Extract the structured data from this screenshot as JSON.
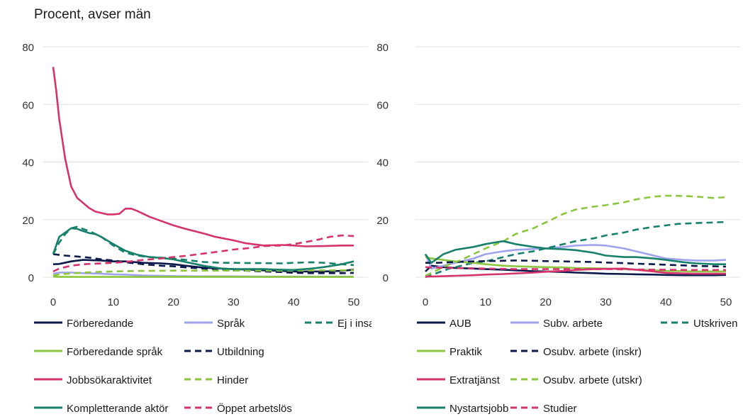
{
  "page_title": "Procent, avser män",
  "colors": {
    "navy": "#0b1a4a",
    "lavender": "#9fa3ee",
    "teal": "#17806a",
    "lime": "#8cc63f",
    "magenta": "#d6336c"
  },
  "chart_data": [
    {
      "type": "line",
      "title": "",
      "xlabel": "",
      "ylabel": "",
      "xlim": [
        0,
        50
      ],
      "ylim": [
        0,
        80
      ],
      "x_ticks": [
        0,
        10,
        20,
        30,
        40,
        50
      ],
      "y_ticks": [
        0,
        20,
        40,
        60,
        80
      ],
      "grid": "horizontal",
      "legend_position": "bottom",
      "series": [
        {
          "name": "Förberedande",
          "color": "#0b1a4a",
          "dash": "solid",
          "x": [
            0,
            1,
            3,
            5,
            8,
            10,
            12,
            15,
            18,
            20,
            22,
            25,
            28,
            30,
            33,
            35,
            38,
            40,
            43,
            45,
            48,
            50
          ],
          "y": [
            4.5,
            4.6,
            5.5,
            6,
            5.8,
            5.5,
            5.5,
            5,
            4.8,
            4.5,
            4,
            3.3,
            3,
            2.8,
            2.6,
            2.4,
            2.2,
            2,
            2,
            2,
            2.2,
            2.6
          ]
        },
        {
          "name": "Språk",
          "color": "#9fa3ee",
          "dash": "solid",
          "x": [
            0,
            1,
            3,
            5,
            8,
            10,
            12,
            15,
            18,
            20,
            25,
            30,
            35,
            40,
            45,
            50
          ],
          "y": [
            1.2,
            1.6,
            1.6,
            1.4,
            1.2,
            1,
            0.9,
            0.6,
            0.5,
            0.4,
            0.3,
            0.3,
            0.2,
            0.2,
            0.2,
            0.2
          ]
        },
        {
          "name": "Ej i insats",
          "color": "#17806a",
          "dash": "dashed",
          "x": [
            0,
            1,
            2,
            3,
            4,
            6,
            8,
            10,
            12,
            14,
            16,
            18,
            20,
            22,
            25,
            28,
            30,
            33,
            35,
            38,
            40,
            43,
            45,
            48,
            50
          ],
          "y": [
            8,
            12,
            15,
            17,
            17.5,
            16,
            14,
            11,
            8.5,
            7.5,
            7,
            6.8,
            6.5,
            6,
            5.3,
            5,
            5,
            4.9,
            4.9,
            4.8,
            5,
            5.2,
            5,
            4.5,
            4.2
          ]
        },
        {
          "name": "Förberedande språk",
          "color": "#8cc63f",
          "dash": "solid",
          "x": [
            0,
            1,
            5,
            10,
            15,
            20,
            25,
            30,
            35,
            40,
            45,
            50
          ],
          "y": [
            0.2,
            0.1,
            0.1,
            0.1,
            0.1,
            0.1,
            0.1,
            0.1,
            0.1,
            0.1,
            0.1,
            0.1
          ]
        },
        {
          "name": "Utbildning",
          "color": "#0b1a4a",
          "dash": "dashed",
          "x": [
            0,
            2,
            4,
            6,
            8,
            10,
            12,
            15,
            18,
            20,
            22,
            25,
            28,
            30,
            33,
            35,
            38,
            40,
            43,
            45,
            48,
            50
          ],
          "y": [
            8,
            7.5,
            7.2,
            6.8,
            6.2,
            5.8,
            5.2,
            4.5,
            4,
            3.8,
            3.4,
            3,
            2.6,
            2.4,
            2.2,
            2,
            1.8,
            1.5,
            1.4,
            1.4,
            1.4,
            1.5
          ]
        },
        {
          "name": "Hinder",
          "color": "#8cc63f",
          "dash": "dashed",
          "x": [
            0,
            1,
            3,
            5,
            8,
            10,
            12,
            15,
            20,
            25,
            30,
            35,
            40,
            45,
            50
          ],
          "y": [
            0.5,
            1,
            1.3,
            1.6,
            1.9,
            2,
            2.1,
            2.2,
            2.3,
            2.3,
            2.3,
            2.3,
            2.3,
            2.4,
            2.4
          ]
        },
        {
          "name": "Jobbsökaraktivitet",
          "color": "#d6336c",
          "dash": "solid",
          "x": [
            0,
            0.5,
            1,
            2,
            3,
            4,
            6,
            7,
            8,
            9,
            10,
            11,
            12,
            13,
            14,
            16,
            18,
            20,
            22,
            25,
            27,
            30,
            32,
            35,
            38,
            40,
            42,
            45,
            48,
            50
          ],
          "y": [
            73,
            65,
            55,
            41,
            31.5,
            27.5,
            24,
            22.8,
            22.3,
            21.8,
            21.8,
            22,
            23.8,
            23.8,
            23,
            21,
            19.5,
            18,
            16.8,
            15.2,
            14,
            12.8,
            11.8,
            11,
            11.2,
            11,
            10.7,
            10.8,
            11,
            11
          ]
        },
        {
          "name": "Kompletterande aktör",
          "color": "#17806a",
          "dash": "solid",
          "x": [
            0,
            0.5,
            1,
            2,
            3,
            4,
            5,
            6,
            7,
            8,
            10,
            12,
            14,
            16,
            18,
            20,
            22,
            25,
            28,
            30,
            33,
            35,
            38,
            40,
            43,
            45,
            48,
            50
          ],
          "y": [
            8,
            11,
            14,
            15.5,
            17,
            16.8,
            16,
            15.3,
            15,
            14,
            11.5,
            9.2,
            7.8,
            7,
            6.7,
            6.2,
            5.3,
            4,
            3,
            2.8,
            2.8,
            2.8,
            2.6,
            2.5,
            3,
            3.5,
            4.5,
            5.5
          ]
        },
        {
          "name": "Öppet arbetslös",
          "color": "#d6336c",
          "dash": "dashed",
          "x": [
            0,
            1,
            3,
            5,
            8,
            10,
            12,
            15,
            18,
            20,
            22,
            25,
            28,
            30,
            33,
            35,
            38,
            40,
            42,
            44,
            46,
            48,
            50
          ],
          "y": [
            2,
            3,
            4,
            4.5,
            4.8,
            5,
            5.3,
            6,
            6.5,
            7,
            7.4,
            8.2,
            9,
            9.6,
            10.2,
            10.8,
            11,
            11.5,
            12.2,
            13,
            14,
            14.5,
            14.3
          ]
        }
      ]
    },
    {
      "type": "line",
      "title": "",
      "xlabel": "",
      "ylabel": "",
      "xlim": [
        0,
        50
      ],
      "ylim": [
        0,
        80
      ],
      "x_ticks": [
        0,
        10,
        20,
        30,
        40,
        50
      ],
      "y_ticks": [
        0,
        20,
        40,
        60,
        80
      ],
      "grid": "horizontal",
      "legend_position": "bottom",
      "series": [
        {
          "name": "AUB",
          "color": "#0b1a4a",
          "dash": "solid",
          "x": [
            0,
            1,
            3,
            5,
            8,
            10,
            13,
            15,
            18,
            20,
            23,
            25,
            28,
            30,
            33,
            35,
            38,
            40,
            43,
            45,
            48,
            50
          ],
          "y": [
            2,
            4,
            3.5,
            3.2,
            3,
            2.8,
            2.6,
            2.4,
            2.1,
            2,
            1.8,
            1.6,
            1.4,
            1.2,
            1.1,
            1,
            0.9,
            0.8,
            0.7,
            0.7,
            0.7,
            0.8
          ]
        },
        {
          "name": "Subv. arbete",
          "color": "#9fa3ee",
          "dash": "solid",
          "x": [
            0,
            1,
            3,
            5,
            8,
            10,
            13,
            15,
            18,
            20,
            23,
            25,
            28,
            30,
            33,
            35,
            38,
            40,
            43,
            45,
            48,
            50
          ],
          "y": [
            8,
            3,
            4,
            5,
            6.5,
            8,
            9,
            9.5,
            9.8,
            10,
            10.5,
            11,
            11.2,
            11,
            10,
            9,
            7.5,
            6.5,
            6,
            5.8,
            5.8,
            6
          ]
        },
        {
          "name": "Utskriven",
          "color": "#17806a",
          "dash": "dashed",
          "x": [
            0,
            2,
            4,
            6,
            8,
            10,
            13,
            15,
            18,
            20,
            23,
            25,
            28,
            30,
            33,
            35,
            38,
            40,
            42,
            45,
            48,
            50
          ],
          "y": [
            0,
            1.5,
            3,
            4,
            5,
            5.5,
            7,
            8,
            9,
            10,
            11.5,
            12.5,
            13.5,
            14.5,
            15.5,
            16.5,
            17.5,
            18,
            18.5,
            18.8,
            19,
            19.2
          ]
        },
        {
          "name": "Praktik",
          "color": "#8cc63f",
          "dash": "solid",
          "x": [
            0,
            1,
            3,
            5,
            8,
            10,
            13,
            15,
            18,
            20,
            23,
            25,
            28,
            30,
            33,
            35,
            38,
            40,
            43,
            45,
            48,
            50
          ],
          "y": [
            7,
            6.5,
            6,
            5.5,
            5,
            4.5,
            4,
            3.8,
            3.6,
            3.5,
            3.4,
            3.2,
            3.1,
            3,
            2.8,
            2.6,
            2.4,
            2.2,
            2.1,
            2,
            2,
            2
          ]
        },
        {
          "name": "Osubv. arbete (inskr)",
          "color": "#0b1a4a",
          "dash": "dashed",
          "x": [
            0,
            2,
            5,
            8,
            10,
            13,
            15,
            18,
            20,
            23,
            25,
            28,
            30,
            33,
            35,
            38,
            40,
            43,
            45,
            48,
            50
          ],
          "y": [
            5,
            5,
            5.3,
            5.5,
            5.6,
            5.7,
            5.8,
            5.7,
            5.6,
            5.5,
            5.4,
            5.3,
            5.1,
            4.9,
            4.7,
            4.5,
            4.3,
            4.1,
            3.9,
            3.8,
            3.7
          ]
        },
        {
          "name": "Osubv. arbete (utskr)",
          "color": "#8cc63f",
          "dash": "dashed",
          "x": [
            0,
            2,
            4,
            6,
            8,
            10,
            13,
            15,
            18,
            20,
            23,
            25,
            28,
            30,
            33,
            35,
            38,
            40,
            43,
            45,
            48,
            50
          ],
          "y": [
            0.5,
            2.5,
            4.5,
            6,
            8,
            10,
            12.5,
            15,
            17,
            19,
            22,
            23.5,
            24.5,
            25,
            26,
            27,
            28,
            28.3,
            28.2,
            28,
            27.5,
            27.8
          ]
        },
        {
          "name": "Extratjänst",
          "color": "#d6336c",
          "dash": "solid",
          "x": [
            0,
            2,
            5,
            8,
            10,
            13,
            15,
            18,
            20,
            23,
            25,
            28,
            30,
            33,
            35,
            38,
            40,
            43,
            45,
            48,
            50
          ],
          "y": [
            0.2,
            0.3,
            0.5,
            0.7,
            0.9,
            1.1,
            1.3,
            1.6,
            1.9,
            2.2,
            2.5,
            2.8,
            2.9,
            3,
            2.6,
            2,
            1.5,
            1.3,
            1.2,
            1.2,
            1.2
          ]
        },
        {
          "name": "Nystartsjobb",
          "color": "#17806a",
          "dash": "solid",
          "x": [
            0,
            1,
            3,
            5,
            8,
            10,
            12,
            13,
            15,
            18,
            20,
            23,
            25,
            28,
            30,
            33,
            35,
            38,
            40,
            43,
            45,
            48,
            50
          ],
          "y": [
            8,
            5,
            8,
            9.5,
            10.5,
            11.5,
            12.2,
            12.5,
            11.5,
            10.5,
            10,
            9.7,
            9.4,
            8.5,
            7.5,
            7,
            7,
            6.5,
            6,
            5.2,
            4.8,
            4.5,
            4.5
          ]
        },
        {
          "name": "Studier",
          "color": "#d6336c",
          "dash": "dashed",
          "x": [
            0,
            2,
            5,
            8,
            10,
            13,
            15,
            18,
            20,
            23,
            25,
            28,
            30,
            33,
            35,
            38,
            40,
            43,
            45,
            48,
            50
          ],
          "y": [
            3.5,
            3.3,
            3.2,
            3.1,
            3,
            2.9,
            2.8,
            2.8,
            2.8,
            2.8,
            2.8,
            2.8,
            2.8,
            2.7,
            2.7,
            2.6,
            2.6,
            2.5,
            2.5,
            2.5,
            2.5
          ]
        }
      ]
    }
  ]
}
